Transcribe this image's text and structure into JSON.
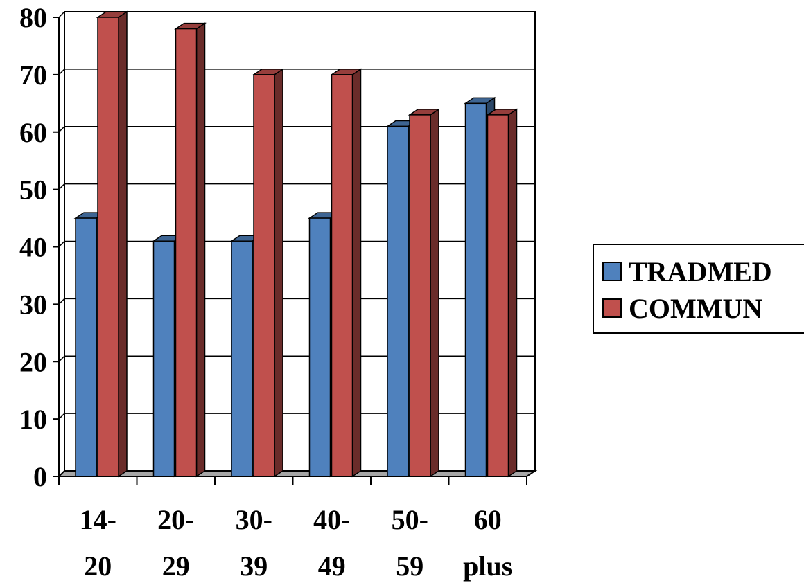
{
  "chart_data": {
    "type": "bar",
    "title": "",
    "xlabel": "",
    "ylabel": "",
    "categories": [
      [
        "14-",
        "20"
      ],
      [
        "20-",
        "29"
      ],
      [
        "30-",
        "39"
      ],
      [
        "40-",
        "49"
      ],
      [
        "50-",
        "59"
      ],
      [
        "60",
        "plus"
      ]
    ],
    "series": [
      {
        "name": "TRADMED",
        "values": [
          45,
          41,
          41,
          45,
          61,
          65
        ],
        "color": "#4f81bd"
      },
      {
        "name": "COMMUN",
        "values": [
          80,
          78,
          70,
          70,
          63,
          63
        ],
        "color": "#c0504d"
      }
    ],
    "ylim": [
      0,
      80
    ],
    "yticks": [
      "0",
      "10",
      "20",
      "30",
      "40",
      "50",
      "60",
      "70",
      "80"
    ],
    "grid": true,
    "legend_position": "right",
    "three_d": true
  }
}
